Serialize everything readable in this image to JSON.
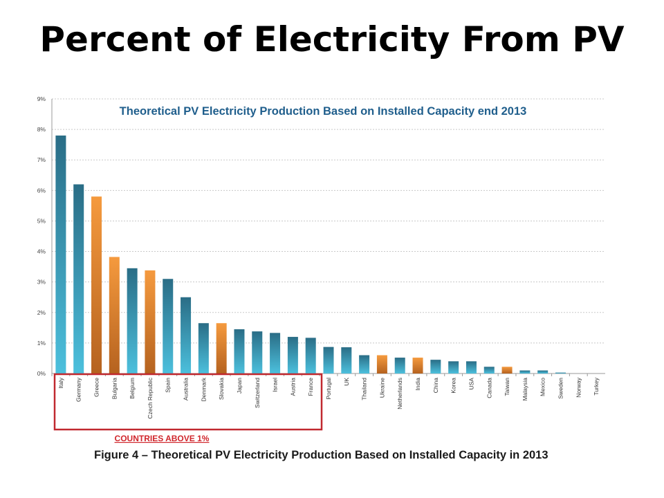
{
  "slide": {
    "title": "Percent of Electricity From PV",
    "caption": "Figure 4 – Theoretical PV Electricity Production Based on Installed Capacity in 2013"
  },
  "colors": {
    "blue": "#3aa0bf",
    "orange": "#f0953b",
    "highlight_box": "#c0282f",
    "title_blue": "#1f5e8c",
    "grid": "#c8c8c8"
  },
  "chart_data": {
    "type": "bar",
    "title": "Theoretical PV Electricity Production Based on Installed Capacity end 2013",
    "xlabel": "",
    "ylabel": "",
    "ylim": [
      0,
      9
    ],
    "yticks": [
      "0%",
      "1%",
      "2%",
      "3%",
      "4%",
      "5%",
      "6%",
      "7%",
      "8%",
      "9%"
    ],
    "grid": true,
    "categories": [
      "Italy",
      "Germany",
      "Greece",
      "Bulgaria",
      "Belgium",
      "Czech Republic",
      "Spain",
      "Australia",
      "Denmark",
      "Slovakia",
      "Japan",
      "Switzerland",
      "Israel",
      "Austria",
      "France",
      "Portugal",
      "UK",
      "Thailand",
      "Ukraine",
      "Netherlands",
      "India",
      "China",
      "Korea",
      "USA",
      "Canada",
      "Taiwan",
      "Malaysia",
      "Mexico",
      "Sweden",
      "Norway",
      "Turkey"
    ],
    "values": [
      7.8,
      6.2,
      5.8,
      3.82,
      3.45,
      3.38,
      3.1,
      2.5,
      1.65,
      1.65,
      1.45,
      1.38,
      1.33,
      1.2,
      1.17,
      0.87,
      0.86,
      0.6,
      0.6,
      0.52,
      0.52,
      0.45,
      0.4,
      0.4,
      0.22,
      0.22,
      0.1,
      0.1,
      0.03,
      0.0,
      0.0
    ],
    "bar_colors": [
      "blue",
      "blue",
      "orange",
      "orange",
      "blue",
      "orange",
      "blue",
      "blue",
      "blue",
      "orange",
      "blue",
      "blue",
      "blue",
      "blue",
      "blue",
      "blue",
      "blue",
      "blue",
      "orange",
      "blue",
      "orange",
      "blue",
      "blue",
      "blue",
      "blue",
      "orange",
      "blue",
      "blue",
      "blue",
      "blue",
      "blue"
    ],
    "annotation": "COUNTRIES ABOVE 1%"
  }
}
